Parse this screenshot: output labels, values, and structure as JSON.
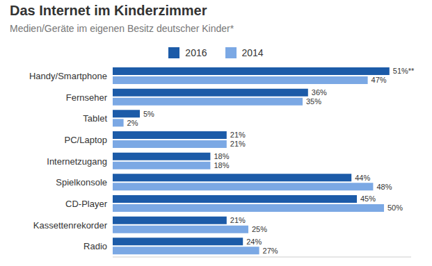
{
  "chart_data": {
    "type": "bar",
    "title": "Das Internet im Kinderzimmer",
    "subtitle": "Medien/Geräte im eigenen Besitz deutscher Kinder*",
    "orientation": "horizontal",
    "categories": [
      "Handy/Smartphone",
      "Fernseher",
      "Tablet",
      "PC/Laptop",
      "Internetzugang",
      "Spielkonsole",
      "CD-Player",
      "Kassettenrekorder",
      "Radio"
    ],
    "series": [
      {
        "name": "2016",
        "color": "#1c5ba8",
        "values": [
          51,
          36,
          5,
          21,
          18,
          44,
          45,
          21,
          24
        ],
        "value_labels": [
          "51%**",
          "36%",
          "5%",
          "21%",
          "18%",
          "44%",
          "45%",
          "21%",
          "24%"
        ]
      },
      {
        "name": "2014",
        "color": "#7ba8e4",
        "values": [
          47,
          35,
          2,
          21,
          18,
          48,
          50,
          25,
          27
        ],
        "value_labels": [
          "47%",
          "35%",
          "2%",
          "21%",
          "18%",
          "48%",
          "50%",
          "25%",
          "27%"
        ]
      }
    ],
    "xlim": [
      0,
      55
    ],
    "grid": false,
    "legend": "top",
    "data_labels": true,
    "tick_labels": "y"
  }
}
